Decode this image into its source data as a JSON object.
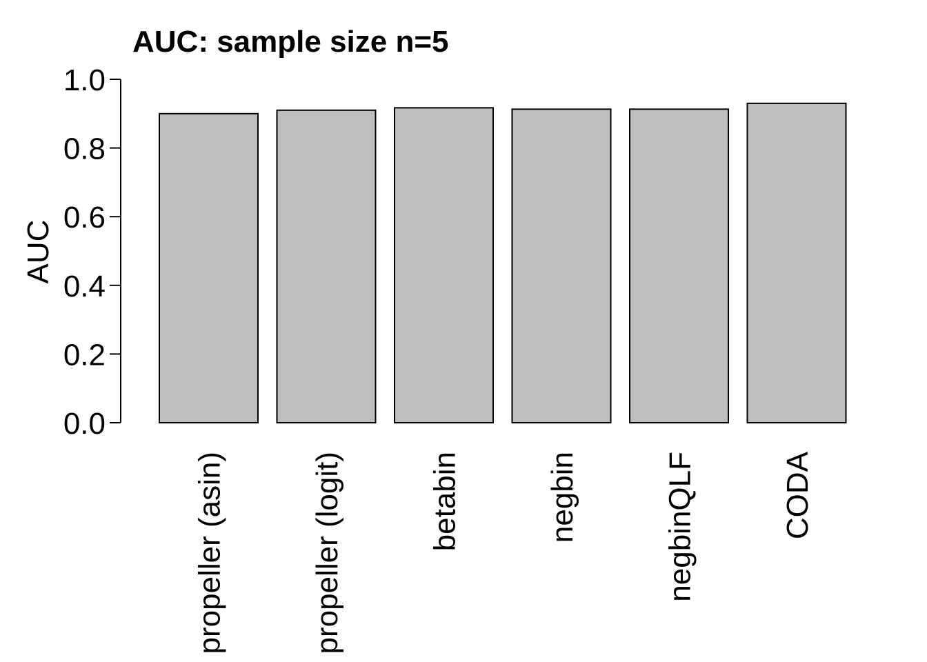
{
  "chart_data": {
    "type": "bar",
    "title": "AUC: sample size n=5",
    "xlabel": "",
    "ylabel": "AUC",
    "categories": [
      "propeller (asin)",
      "propeller (logit)",
      "betabin",
      "negbin",
      "negbinQLF",
      "CODA"
    ],
    "values": [
      0.9,
      0.91,
      0.917,
      0.913,
      0.913,
      0.93
    ],
    "ylim": [
      0,
      1.0
    ],
    "yticks": [
      "0.0",
      "0.2",
      "0.4",
      "0.6",
      "0.8",
      "1.0"
    ],
    "grid": false,
    "legend": "none",
    "bar_color": "#BEBEBE",
    "bar_border_color": "#000000"
  }
}
